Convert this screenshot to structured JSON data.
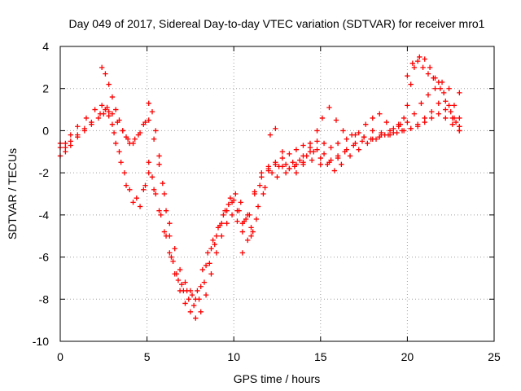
{
  "chart_data": {
    "type": "scatter",
    "title": "Day 049 of 2017, Sidereal Day-to-day VTEC variation (SDTVAR) for receiver mro1",
    "xlabel": "GPS time / hours",
    "ylabel": "SDTVAR / TECUs",
    "xlim": [
      0,
      25
    ],
    "ylim": [
      -10,
      4
    ],
    "xticks": [
      0,
      5,
      10,
      15,
      20,
      25
    ],
    "yticks": [
      -10,
      -8,
      -6,
      -4,
      -2,
      0,
      2,
      4
    ],
    "grid": true,
    "marker": "plus",
    "color": "#ff0000",
    "series": [
      {
        "x": [
          0,
          0.3,
          0.6,
          1.0,
          1.4,
          1.8,
          2.3,
          2.6,
          2.8,
          3.0,
          3.2,
          3.5,
          3.8,
          4.2,
          4.6,
          4.9,
          5.1,
          5.3,
          5.5,
          5.8,
          6.1,
          6.4,
          6.7,
          7.0,
          7.3,
          7.6,
          7.9,
          8.2,
          8.5,
          8.8,
          9.1,
          9.4,
          9.7,
          10.0,
          10.3,
          10.6,
          10.9,
          11.2,
          11.6,
          12.0,
          12.4,
          12.8,
          13.2,
          13.6,
          14.0,
          14.4,
          14.8,
          15.2,
          15.6,
          16.0,
          16.5,
          17.0,
          17.5,
          18.0,
          18.5,
          19.0,
          19.5,
          20.0,
          20.4,
          20.8,
          21.2,
          21.6,
          22.0,
          22.4,
          22.7,
          23.0
        ],
        "y": [
          -0.6,
          -0.8,
          -0.5,
          -0.2,
          0.1,
          0.4,
          0.8,
          1.0,
          0.9,
          0.3,
          -0.6,
          -1.5,
          -2.6,
          -3.4,
          -3.6,
          -2.6,
          -1.5,
          -2.2,
          -3.0,
          -4.0,
          -5.0,
          -6.0,
          -6.8,
          -7.3,
          -7.6,
          -7.8,
          -7.6,
          -6.6,
          -5.8,
          -5.2,
          -4.6,
          -4.0,
          -3.5,
          -3.3,
          -3.8,
          -4.3,
          -4.0,
          -3.0,
          -2.2,
          -1.8,
          -1.5,
          -1.3,
          -1.1,
          -0.9,
          -0.7,
          -0.6,
          -0.5,
          -0.6,
          -0.8,
          -0.6,
          -0.4,
          -0.2,
          -0.3,
          -0.4,
          -0.2,
          0.0,
          0.2,
          0.4,
          0.8,
          1.3,
          1.7,
          2.0,
          2.3,
          2.0,
          1.2,
          0.6
        ]
      },
      {
        "x": [
          0,
          0.3,
          0.6,
          1.0,
          1.4,
          1.8,
          2.2,
          2.5,
          2.8,
          3.1,
          3.4,
          3.7,
          4.0,
          4.4,
          4.8,
          5.1,
          5.4,
          5.7,
          6.0,
          6.3,
          6.6,
          6.9,
          7.2,
          7.5,
          7.8,
          8.1,
          8.4,
          8.7,
          9.0,
          9.3,
          9.6,
          9.9,
          10.2,
          10.5,
          10.8,
          11.1,
          11.4,
          11.8,
          12.2,
          12.6,
          13.0,
          13.4,
          13.8,
          14.2,
          14.6,
          15.0,
          15.4,
          15.8,
          16.2,
          16.7,
          17.2,
          17.7,
          18.2,
          18.7,
          19.2,
          19.7,
          20.2,
          20.6,
          21.0,
          21.4,
          21.8,
          22.2,
          22.6,
          23.0
        ],
        "y": [
          -1.2,
          -1.0,
          -0.7,
          -0.3,
          0.0,
          0.3,
          0.6,
          0.8,
          0.7,
          -0.1,
          -1.0,
          -2.0,
          -2.8,
          -3.2,
          -2.8,
          -2.0,
          -2.8,
          -3.8,
          -4.8,
          -5.8,
          -6.8,
          -7.6,
          -8.2,
          -8.6,
          -8.9,
          -8.6,
          -7.8,
          -6.8,
          -5.8,
          -5.0,
          -4.4,
          -4.0,
          -4.3,
          -4.8,
          -5.2,
          -4.8,
          -3.6,
          -2.7,
          -2.0,
          -1.7,
          -1.6,
          -1.5,
          -1.4,
          -1.2,
          -1.0,
          -1.3,
          -1.6,
          -1.9,
          -1.6,
          -1.2,
          -0.9,
          -0.6,
          -0.4,
          -0.2,
          -0.1,
          0.0,
          0.1,
          0.2,
          0.4,
          0.6,
          0.8,
          0.6,
          0.3,
          0.0
        ]
      },
      {
        "x": [
          0,
          0.3,
          0.6,
          1.0,
          1.5,
          2.0,
          2.4,
          2.7,
          3.0,
          3.3,
          3.6,
          3.9,
          4.2,
          4.5,
          4.8,
          5.1,
          5.4,
          5.7,
          6.0,
          6.3,
          6.6,
          6.9,
          7.2,
          7.5,
          7.8,
          8.1,
          8.4,
          8.7,
          9.0,
          9.3,
          9.6,
          9.9,
          10.2,
          10.5,
          10.8,
          11.2,
          11.6,
          12.0,
          12.4,
          12.8,
          13.2,
          13.6,
          14.0,
          14.4,
          14.8,
          15.2,
          15.6,
          16.0,
          16.4,
          16.9,
          17.4,
          17.9,
          18.4,
          18.9,
          19.4,
          19.8,
          20.2,
          20.6,
          21.0,
          21.4,
          21.8,
          22.2,
          22.6,
          23.0
        ],
        "y": [
          -0.8,
          -0.6,
          -0.2,
          0.2,
          0.6,
          1.0,
          1.2,
          1.1,
          0.8,
          0.4,
          0.0,
          -0.4,
          -0.6,
          -0.2,
          0.3,
          0.5,
          -0.4,
          -1.6,
          -3.0,
          -4.4,
          -5.6,
          -6.6,
          -7.2,
          -7.6,
          -8.0,
          -7.4,
          -6.4,
          -5.6,
          -5.0,
          -4.4,
          -3.8,
          -3.4,
          -3.8,
          -4.4,
          -4.0,
          -2.9,
          -2.0,
          -1.7,
          -1.6,
          -1.7,
          -1.8,
          -1.6,
          -1.2,
          -1.0,
          -0.9,
          -1.1,
          -1.4,
          -1.3,
          -1.0,
          -0.7,
          -0.5,
          -0.4,
          -0.3,
          -0.2,
          -0.1,
          0.0,
          0.1,
          0.3,
          0.6,
          0.9,
          1.3,
          1.0,
          0.6,
          0.2
        ]
      },
      {
        "x": [
          2.4,
          2.6,
          2.8,
          3.0,
          3.2,
          3.4,
          3.6,
          3.8,
          4.0,
          4.3,
          4.6,
          4.9,
          5.1,
          5.3,
          5.5,
          5.7,
          5.9,
          6.1,
          6.3,
          6.5,
          6.8,
          7.1,
          7.4,
          7.7,
          8.0,
          8.3,
          8.6,
          8.9,
          9.2,
          9.5,
          9.8,
          10.1,
          10.4,
          10.7,
          11.0,
          11.3,
          11.7,
          12.1,
          12.4,
          12.8,
          13.2,
          13.6,
          14.0,
          14.4,
          14.8,
          15.1,
          15.5,
          15.9,
          16.3,
          16.8,
          17.2,
          17.6,
          18.0,
          18.4,
          18.8,
          19.2,
          19.6,
          19.8,
          20.0,
          20.2,
          20.4,
          20.7,
          21.0,
          21.3,
          21.6,
          21.9,
          22.2,
          22.5,
          22.8,
          23.0
        ],
        "y": [
          3.0,
          2.7,
          2.2,
          1.6,
          1.0,
          0.5,
          0.0,
          -0.3,
          -0.6,
          -0.4,
          -0.1,
          0.4,
          1.3,
          0.9,
          0.0,
          -1.2,
          -2.5,
          -3.8,
          -5.0,
          -6.2,
          -7.1,
          -7.6,
          -8.0,
          -8.3,
          -8.0,
          -7.2,
          -6.3,
          -5.4,
          -4.5,
          -3.8,
          -3.2,
          -3.0,
          -3.4,
          -4.2,
          -5.0,
          -4.2,
          -3.0,
          -0.2,
          0.1,
          -1.0,
          -1.8,
          -2.0,
          -1.6,
          -0.8,
          0.0,
          0.6,
          1.1,
          0.5,
          0.0,
          -0.2,
          -0.1,
          0.3,
          0.6,
          0.8,
          0.4,
          0.1,
          0.3,
          0.6,
          1.2,
          2.2,
          3.0,
          3.5,
          3.4,
          3.0,
          2.5,
          2.0,
          1.4,
          0.9,
          0.4,
          0.0
        ]
      },
      {
        "x": [
          10.5,
          11.0,
          11.5,
          12.0,
          12.5,
          13.0,
          13.5,
          14.0,
          14.5,
          15.0,
          15.5,
          16.0,
          16.5,
          17.0,
          17.5,
          18.0,
          18.5,
          19.0,
          19.5,
          20.0,
          20.3,
          20.6,
          20.9,
          21.2,
          21.5,
          21.8,
          22.1,
          22.4,
          22.7,
          23.0
        ],
        "y": [
          -5.8,
          -4.6,
          -2.6,
          -1.9,
          -2.2,
          -2.0,
          -1.7,
          -1.5,
          -1.4,
          -1.6,
          -1.5,
          -1.2,
          -0.9,
          -0.6,
          -0.3,
          0.0,
          -0.1,
          -0.2,
          0.3,
          2.6,
          3.2,
          3.3,
          3.0,
          2.7,
          2.5,
          2.3,
          1.8,
          1.2,
          0.6,
          0.2
        ]
      },
      {
        "x": [
          23.0
        ],
        "y": [
          1.8
        ]
      }
    ]
  }
}
